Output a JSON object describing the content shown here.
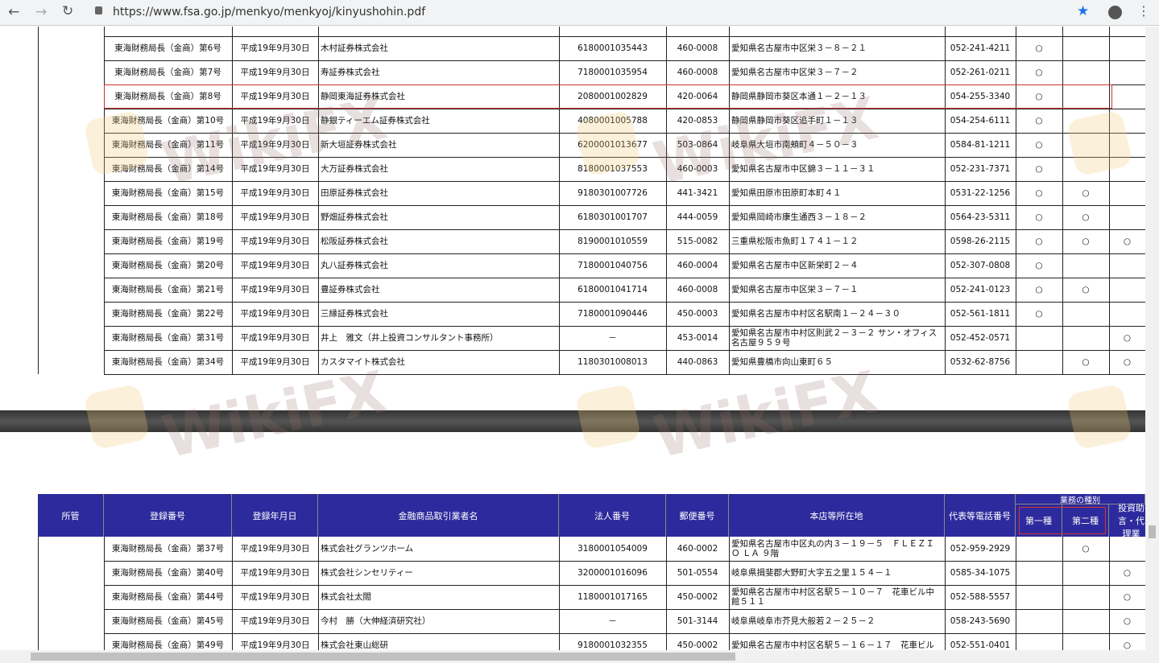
{
  "browser": {
    "url": "https://www.fsa.go.jp/menkyo/menkyoj/kinyushohin.pdf"
  },
  "watermark": "WikiFX",
  "header": {
    "jurisdiction": "所管",
    "reg_no": "登録番号",
    "reg_date": "登録年月日",
    "name": "金融商品取引業者名",
    "corp_no": "法人番号",
    "zip": "郵便番号",
    "address": "本店等所在地",
    "tel": "代表等電話番号",
    "business_type": "業務の種別",
    "type1": "第一種",
    "type2": "第二種",
    "advisory": "投資助言・代理業"
  },
  "table1": {
    "rows": [
      [
        "東海財務局長（金商）第6号",
        "平成19年9月30日",
        "木村証券株式会社",
        "6180001035443",
        "460-0008",
        "愛知県名古屋市中区栄３－８－２１",
        "052-241-4211",
        "○",
        null,
        null
      ],
      [
        "東海財務局長（金商）第7号",
        "平成19年9月30日",
        "寿証券株式会社",
        "7180001035954",
        "460-0008",
        "愛知県名古屋市中区栄３－７－２",
        "052-261-0211",
        "○",
        null,
        null
      ],
      [
        "東海財務局長（金商）第8号",
        "平成19年9月30日",
        "静岡東海証券株式会社",
        "2080001002829",
        "420-0064",
        "静岡県静岡市葵区本通１－２－１３",
        "054-255-3340",
        "○",
        null,
        null
      ],
      [
        "東海財務局長（金商）第10号",
        "平成19年9月30日",
        "静銀ティーエム証券株式会社",
        "4080001005788",
        "420-0853",
        "静岡県静岡市葵区追手町１－１３",
        "054-254-6111",
        "○",
        null,
        null
      ],
      [
        "東海財務局長（金商）第11号",
        "平成19年9月30日",
        "新大垣証券株式会社",
        "6200001013677",
        "503-0864",
        "岐阜県大垣市南頬町４－５０－３",
        "0584-81-1211",
        "○",
        null,
        null
      ],
      [
        "東海財務局長（金商）第14号",
        "平成19年9月30日",
        "大万証券株式会社",
        "8180001037553",
        "460-0003",
        "愛知県名古屋市中区錦３－１１－３１",
        "052-231-7371",
        "○",
        null,
        null
      ],
      [
        "東海財務局長（金商）第15号",
        "平成19年9月30日",
        "田原証券株式会社",
        "9180301007726",
        "441-3421",
        "愛知県田原市田原町本町４１",
        "0531-22-1256",
        "○",
        "○",
        null
      ],
      [
        "東海財務局長（金商）第18号",
        "平成19年9月30日",
        "野畑証券株式会社",
        "6180301001707",
        "444-0059",
        "愛知県岡崎市康生通西３－１８－２",
        "0564-23-5311",
        "○",
        "○",
        null
      ],
      [
        "東海財務局長（金商）第19号",
        "平成19年9月30日",
        "松阪証券株式会社",
        "8190001010559",
        "515-0082",
        "三重県松阪市魚町１７４１－１２",
        "0598-26-2115",
        "○",
        "○",
        "○"
      ],
      [
        "東海財務局長（金商）第20号",
        "平成19年9月30日",
        "丸八証券株式会社",
        "7180001040756",
        "460-0004",
        "愛知県名古屋市中区新栄町２－４",
        "052-307-0808",
        "○",
        null,
        null
      ],
      [
        "東海財務局長（金商）第21号",
        "平成19年9月30日",
        "豊証券株式会社",
        "6180001041714",
        "460-0008",
        "愛知県名古屋市中区栄３－７－１",
        "052-241-0123",
        "○",
        "○",
        null
      ],
      [
        "東海財務局長（金商）第22号",
        "平成19年9月30日",
        "三縁証券株式会社",
        "7180001090446",
        "450-0003",
        "愛知県名古屋市中村区名駅南１－２４－３０",
        "052-561-1811",
        "○",
        null,
        null
      ],
      [
        "東海財務局長（金商）第31号",
        "平成19年9月30日",
        "井上　雅文（井上投資コンサルタント事務所）",
        "－",
        "453-0014",
        "愛知県名古屋市中村区則武２－３－２ サン・オフィス名古屋９５９号",
        "052-452-0571",
        null,
        null,
        "○"
      ],
      [
        "東海財務局長（金商）第34号",
        "平成19年9月30日",
        "カスタマイト株式会社",
        "1180301008013",
        "440-0863",
        "愛知県豊橋市向山東町６５",
        "0532-62-8756",
        null,
        "○",
        "○"
      ]
    ]
  },
  "table2": {
    "rows": [
      [
        "東海財務局長（金商）第37号",
        "平成19年9月30日",
        "株式会社グランツホーム",
        "3180001054009",
        "460-0002",
        "愛知県名古屋市中区丸の内３－１９－５　ＦＬＥＺＩＯ ＬＡ ９階",
        "052-959-2929",
        null,
        "○",
        null
      ],
      [
        "東海財務局長（金商）第40号",
        "平成19年9月30日",
        "株式会社シンセリティー",
        "3200001016096",
        "501-0554",
        "岐阜県揖斐郡大野町大字五之里１５４－１",
        "0585-34-1075",
        null,
        null,
        "○"
      ],
      [
        "東海財務局長（金商）第44号",
        "平成19年9月30日",
        "株式会社太閤",
        "1180001017165",
        "450-0002",
        "愛知県名古屋市中村区名駅５－１０－７　花車ビル中館５１１",
        "052-588-5557",
        null,
        null,
        "○"
      ],
      [
        "東海財務局長（金商）第45号",
        "平成19年9月30日",
        "今村　勝（大伸経済研究社）",
        "－",
        "501-3144",
        "岐阜県岐阜市芥見大般若２－２５－２",
        "058-243-5690",
        null,
        null,
        "○"
      ],
      [
        "東海財務局長（金商）第49号",
        "平成19年9月30日",
        "株式会社東山総研",
        "9180001032355",
        "450-0002",
        "愛知県名古屋市中村区名駅５－１６－１７　花車ビル",
        "052-551-0401",
        null,
        null,
        "○"
      ]
    ]
  }
}
